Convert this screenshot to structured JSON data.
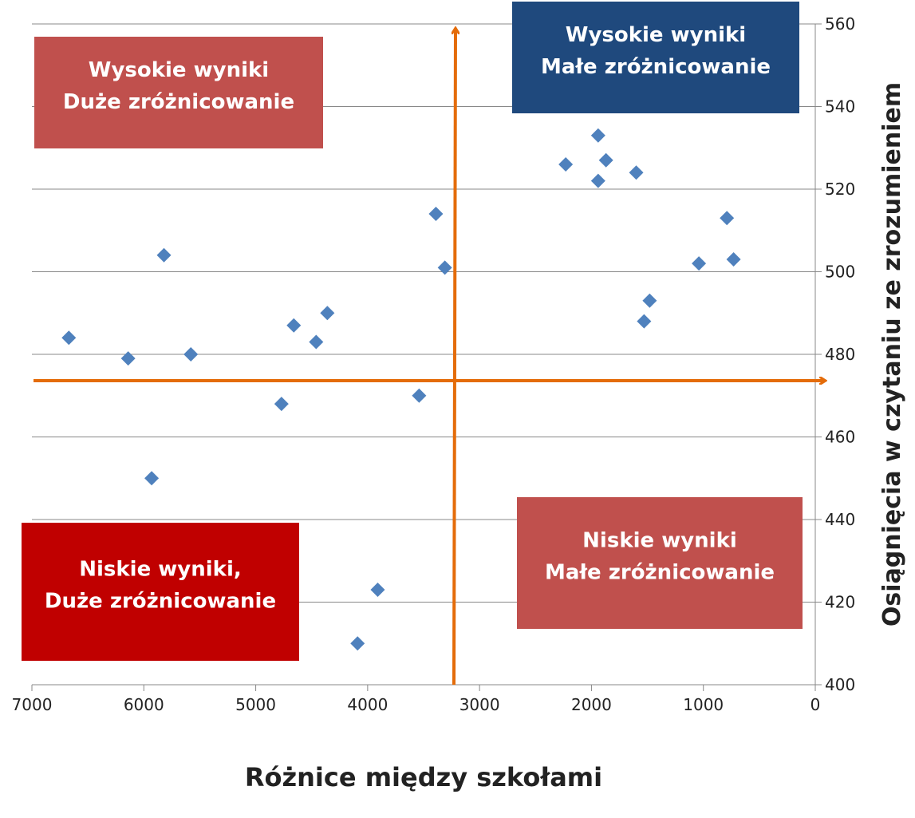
{
  "chart_data": {
    "type": "scatter",
    "x_label": "Różnice między szkołami",
    "y_label": "Osiągnięcia w czytaniu ze zrozumieniem",
    "xlim": [
      7000,
      0
    ],
    "xticks": [
      7000,
      6000,
      5000,
      4000,
      3000,
      2000,
      1000,
      0
    ],
    "ylim": [
      400,
      560
    ],
    "yticks": [
      400,
      420,
      440,
      460,
      480,
      500,
      520,
      540,
      560
    ],
    "grid": true,
    "color": "#4f81bd",
    "x": [
      6670,
      6140,
      5580,
      5930,
      5820,
      4770,
      4660,
      4460,
      4360,
      4090,
      3910,
      3540,
      3390,
      3310,
      2230,
      1940,
      1940,
      1870,
      1600,
      1530,
      1480,
      1040,
      790,
      730
    ],
    "values": [
      484,
      479,
      480,
      450,
      504,
      468,
      487,
      483,
      490,
      410,
      423,
      470,
      514,
      501,
      526,
      533,
      522,
      527,
      524,
      488,
      493,
      502,
      513,
      503
    ],
    "annotations": [
      {
        "lines": [
          "Wysokie wyniki",
          "Duże zróżnicowanie"
        ],
        "color": "#c0504d"
      },
      {
        "lines": [
          "Wysokie wyniki",
          "Małe zróżnicowanie"
        ],
        "color": "#1f497d"
      },
      {
        "lines": [
          "Niskie wyniki,",
          "Duże zróżnicowanie"
        ],
        "color": "#c00000"
      },
      {
        "lines": [
          "Niskie wyniki",
          "Małe zróżnicowanie"
        ],
        "color": "#c0504d"
      }
    ]
  }
}
